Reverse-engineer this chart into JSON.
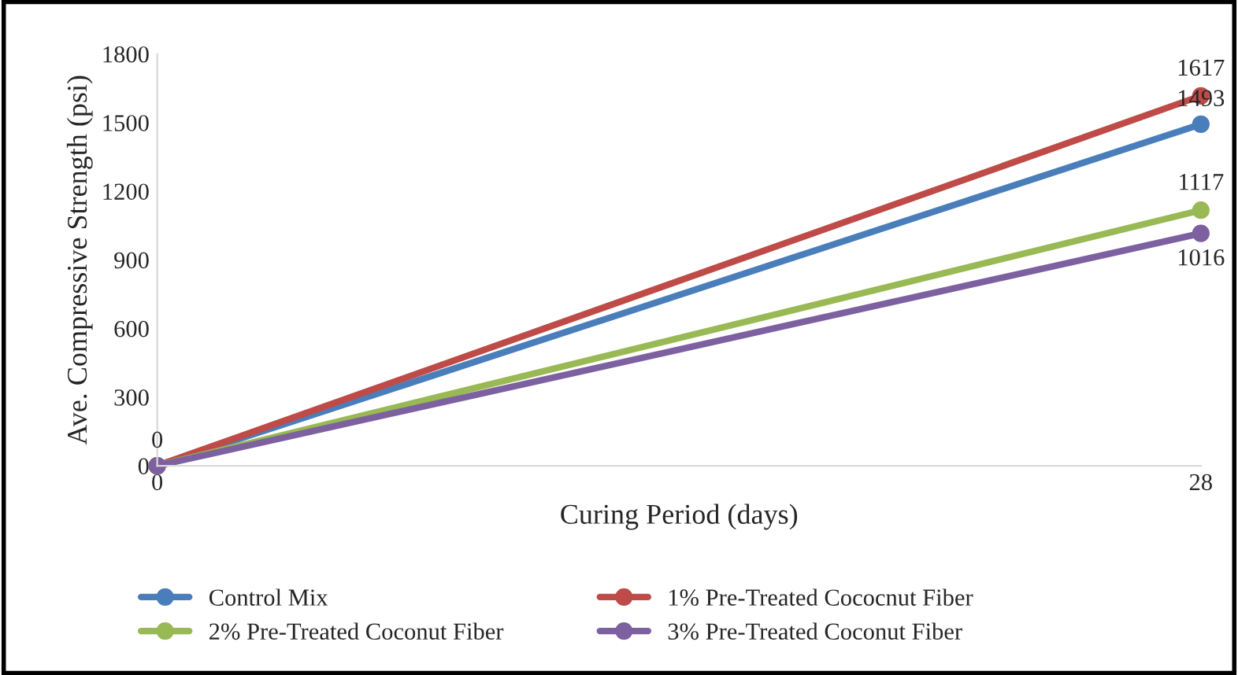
{
  "chart_data": {
    "type": "line",
    "xlabel": "Curing Period (days)",
    "ylabel": "Ave. Compressive Strength (psi)",
    "categories": [
      "0",
      "28"
    ],
    "series": [
      {
        "name": "Control Mix",
        "color": "#4a7ebb",
        "values": [
          0,
          1493
        ],
        "value_labels": [
          "0",
          "1493"
        ]
      },
      {
        "name": "1% Pre-Treated Cococnut Fiber",
        "color": "#be4b48",
        "values": [
          0,
          1617
        ],
        "value_labels": [
          null,
          "1617"
        ]
      },
      {
        "name": "2% Pre-Treated Coconut Fiber",
        "color": "#98b954",
        "values": [
          0,
          1117
        ],
        "value_labels": [
          null,
          "1117"
        ]
      },
      {
        "name": "3% Pre-Treated Coconut Fiber",
        "color": "#7d60a0",
        "values": [
          0,
          1016
        ],
        "value_labels": [
          null,
          "1016"
        ]
      }
    ],
    "ylim": [
      0,
      1800
    ],
    "yticks": [
      0,
      300,
      600,
      900,
      1200,
      1500,
      1800
    ],
    "grid": false,
    "legend": "bottom",
    "marker": "circle",
    "line_style": "solid"
  }
}
